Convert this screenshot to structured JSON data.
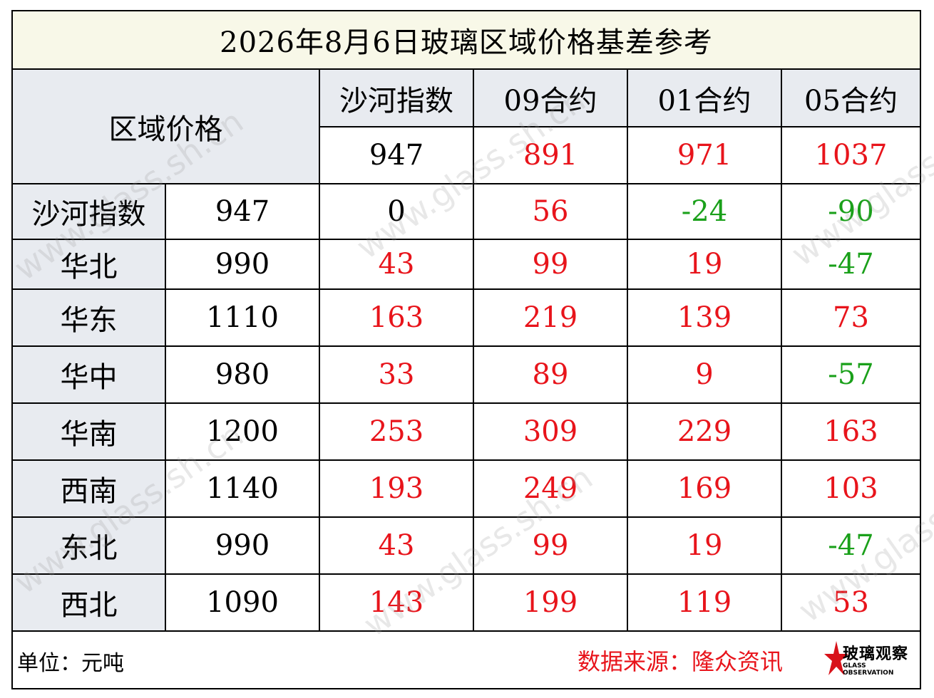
{
  "title": "2026年8月6日玻璃区域价格基差参考",
  "header": {
    "region_price_label": "区域价格",
    "columns": [
      {
        "label": "沙河指数",
        "price": "947",
        "tone": "zero"
      },
      {
        "label": "09合约",
        "price": "891",
        "tone": "pos"
      },
      {
        "label": "01合约",
        "price": "971",
        "tone": "pos"
      },
      {
        "label": "05合约",
        "price": "1037",
        "tone": "pos"
      }
    ]
  },
  "rows": [
    {
      "region": "沙河指数",
      "price": "947",
      "cells": [
        {
          "v": "0",
          "t": "zero"
        },
        {
          "v": "56",
          "t": "pos"
        },
        {
          "v": "-24",
          "t": "neg"
        },
        {
          "v": "-90",
          "t": "neg"
        }
      ]
    },
    {
      "region": "华北",
      "price": "990",
      "cells": [
        {
          "v": "43",
          "t": "pos"
        },
        {
          "v": "99",
          "t": "pos"
        },
        {
          "v": "19",
          "t": "pos"
        },
        {
          "v": "-47",
          "t": "neg"
        }
      ]
    },
    {
      "region": "华东",
      "price": "1110",
      "cells": [
        {
          "v": "163",
          "t": "pos"
        },
        {
          "v": "219",
          "t": "pos"
        },
        {
          "v": "139",
          "t": "pos"
        },
        {
          "v": "73",
          "t": "pos"
        }
      ]
    },
    {
      "region": "华中",
      "price": "980",
      "cells": [
        {
          "v": "33",
          "t": "pos"
        },
        {
          "v": "89",
          "t": "pos"
        },
        {
          "v": "9",
          "t": "pos"
        },
        {
          "v": "-57",
          "t": "neg"
        }
      ]
    },
    {
      "region": "华南",
      "price": "1200",
      "cells": [
        {
          "v": "253",
          "t": "pos"
        },
        {
          "v": "309",
          "t": "pos"
        },
        {
          "v": "229",
          "t": "pos"
        },
        {
          "v": "163",
          "t": "pos"
        }
      ]
    },
    {
      "region": "西南",
      "price": "1140",
      "cells": [
        {
          "v": "193",
          "t": "pos"
        },
        {
          "v": "249",
          "t": "pos"
        },
        {
          "v": "169",
          "t": "pos"
        },
        {
          "v": "103",
          "t": "pos"
        }
      ]
    },
    {
      "region": "东北",
      "price": "990",
      "cells": [
        {
          "v": "43",
          "t": "pos"
        },
        {
          "v": "99",
          "t": "pos"
        },
        {
          "v": "19",
          "t": "pos"
        },
        {
          "v": "-47",
          "t": "neg"
        }
      ]
    },
    {
      "region": "西北",
      "price": "1090",
      "cells": [
        {
          "v": "143",
          "t": "pos"
        },
        {
          "v": "199",
          "t": "pos"
        },
        {
          "v": "119",
          "t": "pos"
        },
        {
          "v": "53",
          "t": "pos"
        }
      ]
    }
  ],
  "footer": {
    "unit": "单位：元吨",
    "source": "数据来源：隆众资讯",
    "logo_text": "玻璃观察",
    "logo_sub": "GLASS OBSERVATION",
    "logo_icon": "red-star-icon"
  },
  "watermark": "www.glass.sh.cn",
  "colors": {
    "positive": "#e8141b",
    "negative": "#1aa01a",
    "header_bg": "#e8ebf0",
    "title_bg": "#f8f8e8"
  }
}
